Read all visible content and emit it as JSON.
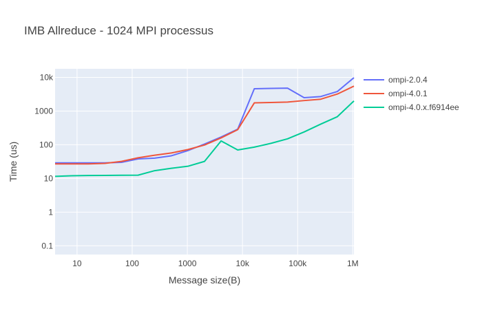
{
  "chart_data": {
    "type": "line",
    "title": "IMB Allreduce - 1024 MPI processus",
    "xlabel": "Message size(B)",
    "ylabel": "Time (us)",
    "x_scale": "log",
    "y_scale": "log",
    "xlim": [
      4,
      1048576
    ],
    "ylim": [
      0.055,
      18000
    ],
    "x_tick_values": [
      10,
      100,
      1000,
      10000,
      100000,
      1000000
    ],
    "x_tick_labels": [
      "10",
      "100",
      "1000",
      "10k",
      "100k",
      "1M"
    ],
    "y_tick_values": [
      0.1,
      1,
      10,
      100,
      1000,
      10000
    ],
    "y_tick_labels": [
      "0.1",
      "1",
      "10",
      "100",
      "1000",
      "10k"
    ],
    "grid": true,
    "legend_position": "right",
    "background_color": "#e5ecf6",
    "x": [
      4,
      8,
      16,
      32,
      64,
      128,
      256,
      512,
      1024,
      2048,
      4096,
      8192,
      16384,
      32768,
      65536,
      131072,
      262144,
      524288,
      1048576
    ],
    "series": [
      {
        "name": "ompi-2.0.4",
        "color": "#636efa",
        "values": [
          29,
          29,
          29,
          29,
          30,
          38,
          40,
          47,
          67,
          105,
          170,
          290,
          4600,
          4700,
          4800,
          2500,
          2700,
          3800,
          9800
        ]
      },
      {
        "name": "ompi-4.0.1",
        "color": "#ef553b",
        "values": [
          27,
          27,
          27,
          28,
          32,
          41,
          49,
          57,
          72,
          98,
          160,
          280,
          1750,
          1800,
          1850,
          2050,
          2250,
          3200,
          5500
        ]
      },
      {
        "name": "ompi-4.0.x.f6914ee",
        "color": "#00cc96",
        "values": [
          11.5,
          12,
          12.2,
          12.3,
          12.4,
          12.5,
          17,
          20,
          23,
          32,
          130,
          70,
          85,
          110,
          150,
          240,
          410,
          680,
          2000
        ]
      }
    ]
  }
}
